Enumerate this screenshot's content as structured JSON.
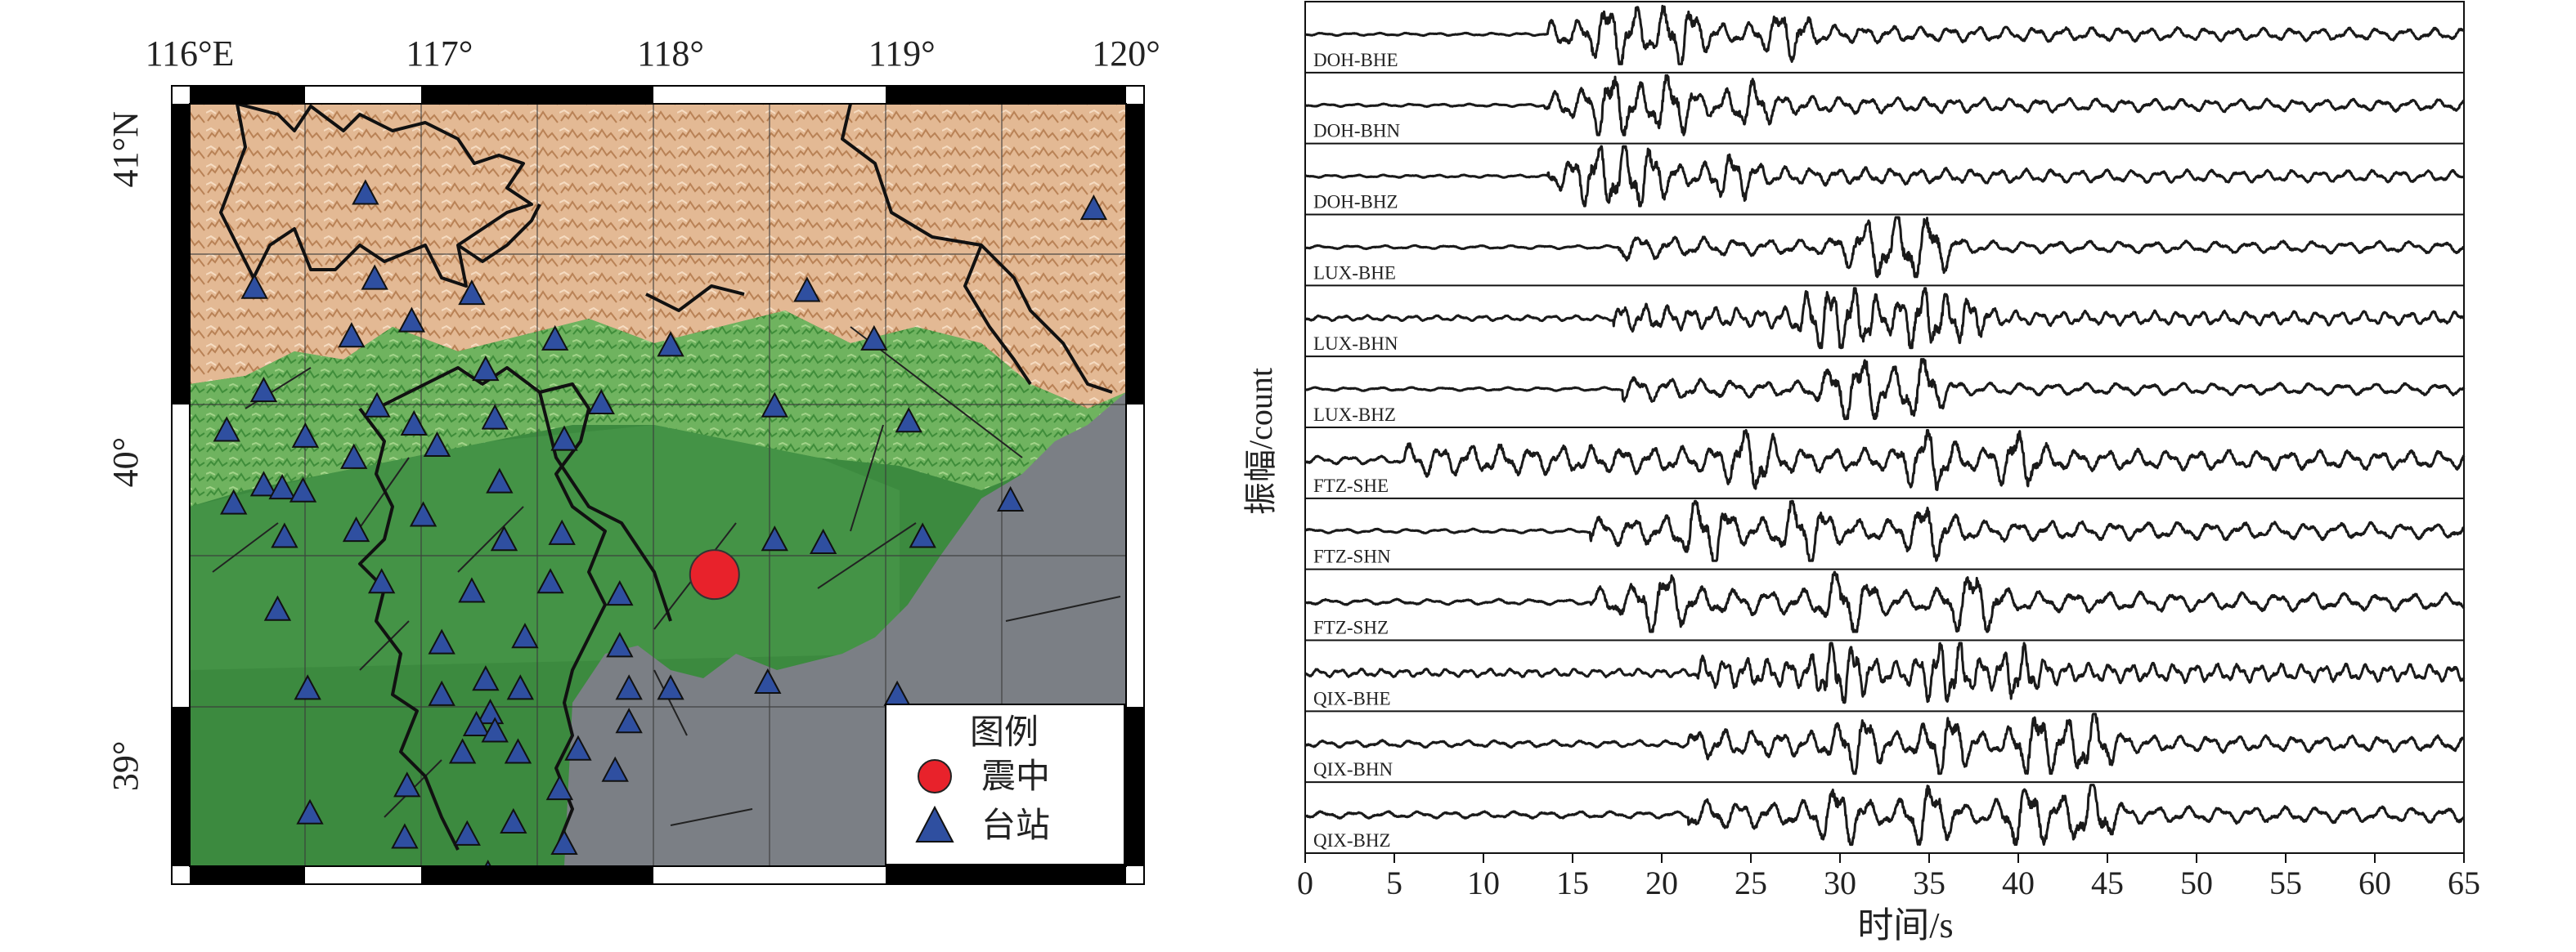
{
  "chart_data": [
    {
      "type": "map",
      "x_ticks": [
        "116°E",
        "117°",
        "118°",
        "119°",
        "120°"
      ],
      "y_ticks": [
        "41°N",
        "40°",
        "39°"
      ],
      "legend": {
        "title": "图例",
        "items": [
          {
            "label": "震中",
            "symbol": "circle",
            "color": "#e8222b"
          },
          {
            "label": "台站",
            "symbol": "triangle",
            "color": "#2f4fa0"
          }
        ]
      },
      "epicenter": {
        "lon": 118.19,
        "lat": 39.63
      },
      "stations": [
        {
          "lon": 116.68,
          "lat": 40.88
        },
        {
          "lon": 116.2,
          "lat": 40.57
        },
        {
          "lon": 116.72,
          "lat": 40.6
        },
        {
          "lon": 117.14,
          "lat": 40.55
        },
        {
          "lon": 116.62,
          "lat": 40.41
        },
        {
          "lon": 116.88,
          "lat": 40.46
        },
        {
          "lon": 117.2,
          "lat": 40.3
        },
        {
          "lon": 117.5,
          "lat": 40.4
        },
        {
          "lon": 116.24,
          "lat": 40.23
        },
        {
          "lon": 116.73,
          "lat": 40.18
        },
        {
          "lon": 116.89,
          "lat": 40.12
        },
        {
          "lon": 117.24,
          "lat": 40.14
        },
        {
          "lon": 116.08,
          "lat": 40.1
        },
        {
          "lon": 116.42,
          "lat": 40.08
        },
        {
          "lon": 116.63,
          "lat": 40.01
        },
        {
          "lon": 116.99,
          "lat": 40.05
        },
        {
          "lon": 117.54,
          "lat": 40.07
        },
        {
          "lon": 117.7,
          "lat": 40.19
        },
        {
          "lon": 116.24,
          "lat": 39.92
        },
        {
          "lon": 116.32,
          "lat": 39.91
        },
        {
          "lon": 116.41,
          "lat": 39.9
        },
        {
          "lon": 116.11,
          "lat": 39.86
        },
        {
          "lon": 116.93,
          "lat": 39.82
        },
        {
          "lon": 117.26,
          "lat": 39.93
        },
        {
          "lon": 116.33,
          "lat": 39.75
        },
        {
          "lon": 116.64,
          "lat": 39.77
        },
        {
          "lon": 117.28,
          "lat": 39.74
        },
        {
          "lon": 117.53,
          "lat": 39.76
        },
        {
          "lon": 116.75,
          "lat": 39.6
        },
        {
          "lon": 117.14,
          "lat": 39.57
        },
        {
          "lon": 117.48,
          "lat": 39.6
        },
        {
          "lon": 117.78,
          "lat": 39.56
        },
        {
          "lon": 116.3,
          "lat": 39.51
        },
        {
          "lon": 117.01,
          "lat": 39.4
        },
        {
          "lon": 117.37,
          "lat": 39.42
        },
        {
          "lon": 117.78,
          "lat": 39.39
        },
        {
          "lon": 116.43,
          "lat": 39.25
        },
        {
          "lon": 117.2,
          "lat": 39.28
        },
        {
          "lon": 117.35,
          "lat": 39.25
        },
        {
          "lon": 117.82,
          "lat": 39.25
        },
        {
          "lon": 117.01,
          "lat": 39.23
        },
        {
          "lon": 117.22,
          "lat": 39.17
        },
        {
          "lon": 117.16,
          "lat": 39.13
        },
        {
          "lon": 117.24,
          "lat": 39.11
        },
        {
          "lon": 117.82,
          "lat": 39.14
        },
        {
          "lon": 117.1,
          "lat": 39.04
        },
        {
          "lon": 117.34,
          "lat": 39.04
        },
        {
          "lon": 117.6,
          "lat": 39.05
        },
        {
          "lon": 117.76,
          "lat": 38.98
        },
        {
          "lon": 116.86,
          "lat": 38.93
        },
        {
          "lon": 117.52,
          "lat": 38.92
        },
        {
          "lon": 116.44,
          "lat": 38.84
        },
        {
          "lon": 117.32,
          "lat": 38.81
        },
        {
          "lon": 116.85,
          "lat": 38.76
        },
        {
          "lon": 117.12,
          "lat": 38.77
        },
        {
          "lon": 117.54,
          "lat": 38.74
        },
        {
          "lon": 117.21,
          "lat": 38.64
        },
        {
          "lon": 117.37,
          "lat": 38.62
        },
        {
          "lon": 118.0,
          "lat": 40.38
        },
        {
          "lon": 118.45,
          "lat": 40.18
        },
        {
          "lon": 118.45,
          "lat": 39.74
        },
        {
          "lon": 118.66,
          "lat": 39.73
        },
        {
          "lon": 118.59,
          "lat": 40.56
        },
        {
          "lon": 118.88,
          "lat": 40.4
        },
        {
          "lon": 119.03,
          "lat": 40.13
        },
        {
          "lon": 119.09,
          "lat": 39.75
        },
        {
          "lon": 119.47,
          "lat": 39.87
        },
        {
          "lon": 119.83,
          "lat": 40.83
        },
        {
          "lon": 118.0,
          "lat": 39.25
        },
        {
          "lon": 118.42,
          "lat": 39.27
        },
        {
          "lon": 118.98,
          "lat": 39.23
        }
      ]
    },
    {
      "type": "line",
      "title": "",
      "xlabel": "时间/s",
      "ylabel": "振幅/count",
      "xlim": [
        0,
        65
      ],
      "xticks": [
        0,
        5,
        10,
        15,
        20,
        25,
        30,
        35,
        40,
        45,
        50,
        55,
        60,
        65
      ],
      "series": [
        {
          "name": "DOH-BHE",
          "onset": 13.6,
          "peaks": [
            [
              17.5,
              0.9
            ],
            [
              21,
              0.8
            ],
            [
              27,
              0.6
            ]
          ],
          "decay": 18,
          "period": 1.6,
          "noise": 0.04
        },
        {
          "name": "DOH-BHN",
          "onset": 13.4,
          "peaks": [
            [
              17.2,
              0.85
            ],
            [
              20.5,
              0.7
            ],
            [
              25,
              0.5
            ]
          ],
          "decay": 16,
          "period": 1.6,
          "noise": 0.04
        },
        {
          "name": "DOH-BHZ",
          "onset": 13.6,
          "peaks": [
            [
              16.6,
              0.9
            ],
            [
              19,
              0.7
            ],
            [
              24,
              0.5
            ]
          ],
          "decay": 16,
          "period": 1.5,
          "noise": 0.04
        },
        {
          "name": "LUX-BHE",
          "onset": 17.6,
          "peaks": [
            [
              31,
              0.45
            ],
            [
              33,
              1.0
            ],
            [
              35,
              0.8
            ]
          ],
          "decay": 6,
          "period": 1.8,
          "noise": 0.05
        },
        {
          "name": "LUX-BHN",
          "onset": 17.3,
          "peaks": [
            [
              29,
              0.9
            ],
            [
              31,
              0.8
            ],
            [
              34.5,
              0.9
            ],
            [
              37,
              0.5
            ]
          ],
          "decay": 8,
          "period": 1.3,
          "noise": 0.08
        },
        {
          "name": "LUX-BHZ",
          "onset": 17.8,
          "peaks": [
            [
              30,
              0.55
            ],
            [
              31.5,
              0.9
            ],
            [
              34.5,
              0.95
            ]
          ],
          "decay": 6,
          "period": 1.8,
          "noise": 0.05
        },
        {
          "name": "FTZ-SHE",
          "onset": 5.5,
          "peaks": [
            [
              25,
              0.9
            ],
            [
              35,
              0.8
            ],
            [
              40,
              0.65
            ]
          ],
          "decay": 30,
          "period": 1.7,
          "noise": 0.12
        },
        {
          "name": "FTZ-SHN",
          "onset": 16,
          "peaks": [
            [
              22.5,
              1.0
            ],
            [
              28,
              0.8
            ],
            [
              35,
              0.7
            ]
          ],
          "decay": 30,
          "period": 1.8,
          "noise": 0.06
        },
        {
          "name": "FTZ-SHZ",
          "onset": 16,
          "peaks": [
            [
              20,
              0.7
            ],
            [
              30.5,
              0.9
            ],
            [
              37.5,
              0.9
            ]
          ],
          "decay": 30,
          "period": 1.9,
          "noise": 0.08
        },
        {
          "name": "QIX-BHE",
          "onset": 22,
          "peaks": [
            [
              30,
              0.85
            ],
            [
              36,
              1.0
            ],
            [
              40,
              0.6
            ]
          ],
          "decay": 14,
          "period": 1.2,
          "noise": 0.12
        },
        {
          "name": "QIX-BHN",
          "onset": 21.5,
          "peaks": [
            [
              31,
              0.7
            ],
            [
              36,
              0.8
            ],
            [
              41,
              0.9
            ],
            [
              44,
              0.95
            ]
          ],
          "decay": 12,
          "period": 1.6,
          "noise": 0.1
        },
        {
          "name": "QIX-BHZ",
          "onset": 21.5,
          "peaks": [
            [
              30,
              0.7
            ],
            [
              35,
              0.8
            ],
            [
              40.5,
              0.95
            ],
            [
              44,
              1.0
            ]
          ],
          "decay": 12,
          "period": 1.8,
          "noise": 0.1
        }
      ]
    }
  ]
}
